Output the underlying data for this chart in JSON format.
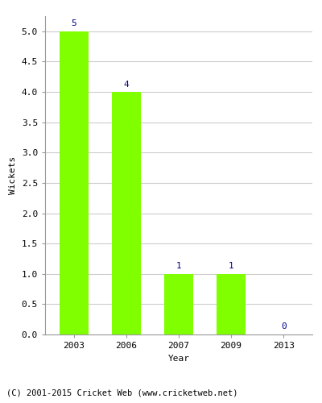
{
  "years": [
    "2003",
    "2006",
    "2007",
    "2009",
    "2013"
  ],
  "values": [
    5,
    4,
    1,
    1,
    0
  ],
  "bar_color": "#7FFF00",
  "label_color": "#00008B",
  "ylabel": "Wickets",
  "xlabel": "Year",
  "ylim": [
    0,
    5.25
  ],
  "yticks": [
    0.0,
    0.5,
    1.0,
    1.5,
    2.0,
    2.5,
    3.0,
    3.5,
    4.0,
    4.5,
    5.0
  ],
  "footer": "(C) 2001-2015 Cricket Web (www.cricketweb.net)",
  "label_fontsize": 8,
  "axis_fontsize": 8,
  "footer_fontsize": 7.5,
  "bar_width": 0.55,
  "background_color": "#ffffff",
  "grid_color": "#cccccc",
  "spine_color": "#999999"
}
